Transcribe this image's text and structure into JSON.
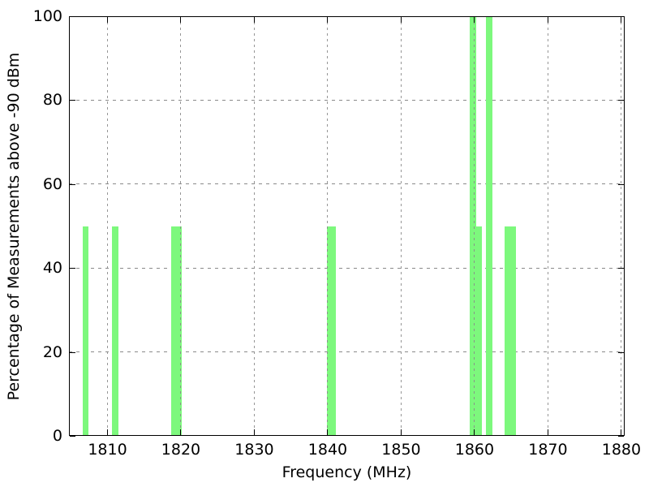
{
  "figure": {
    "background": "#ffffff"
  },
  "chart_data": {
    "type": "bar",
    "title": "",
    "xlabel": "Frequency (MHz)",
    "ylabel": "Percentage of Measurements above -90 dBm",
    "xlim": [
      1804.75,
      1880.45
    ],
    "ylim": [
      0,
      100
    ],
    "x_ticks": [
      1810,
      1820,
      1830,
      1840,
      1850,
      1860,
      1870,
      1880
    ],
    "y_ticks": [
      0,
      20,
      40,
      60,
      80,
      100
    ],
    "grid": true,
    "legend_position": "none",
    "bar_color": "#7df87d",
    "axis_color": "#000000",
    "grid_color": "#8a8a8a",
    "bars": [
      {
        "freq": 1807.0,
        "width_mhz": 0.85,
        "value": 50
      },
      {
        "freq": 1811.05,
        "width_mhz": 0.8,
        "value": 50
      },
      {
        "freq": 1819.4,
        "width_mhz": 1.5,
        "value": 50
      },
      {
        "freq": 1840.5,
        "width_mhz": 1.2,
        "value": 50
      },
      {
        "freq": 1859.8,
        "width_mhz": 0.85,
        "value": 100
      },
      {
        "freq": 1860.65,
        "width_mhz": 0.8,
        "value": 50
      },
      {
        "freq": 1861.95,
        "width_mhz": 0.9,
        "value": 100
      },
      {
        "freq": 1864.9,
        "width_mhz": 1.55,
        "value": 50
      }
    ]
  }
}
